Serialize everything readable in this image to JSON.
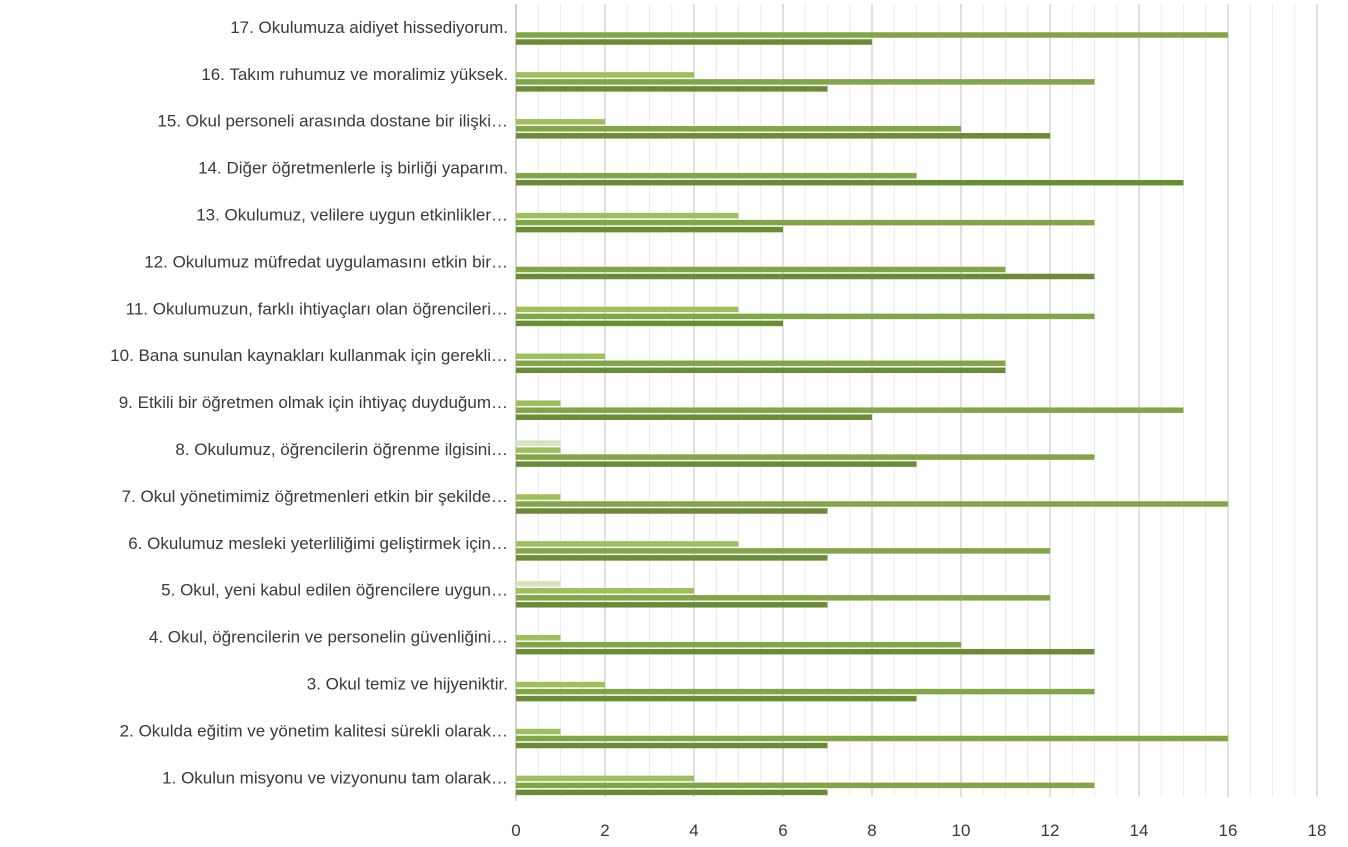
{
  "chart_data": {
    "type": "bar",
    "orientation": "horizontal",
    "xlim": [
      0,
      18
    ],
    "x_ticks": [
      0,
      2,
      4,
      6,
      8,
      10,
      12,
      14,
      16,
      18
    ],
    "grid": true,
    "legend": "none",
    "categories": [
      "1. Okulun misyonu ve vizyonunu tam olarak…",
      "2. Okulda eğitim ve yönetim kalitesi sürekli olarak…",
      "3. Okul temiz ve hijyeniktir.",
      "4. Okul, öğrencilerin ve personelin güvenliğini…",
      "5. Okul, yeni kabul edilen öğrencilere uygun…",
      "6. Okulumuz mesleki yeterliliğimi geliştirmek için…",
      "7. Okul yönetimimiz öğretmenleri etkin bir şekilde…",
      "8. Okulumuz, öğrencilerin öğrenme ilgisini…",
      "9. Etkili bir öğretmen olmak için ihtiyaç duyduğum…",
      "10. Bana sunulan kaynakları kullanmak için gerekli…",
      "11. Okulumuzun, farklı ihtiyaçları olan öğrencileri…",
      "12. Okulumuz müfredat uygulamasını etkin bir…",
      "13. Okulumuz, velilere uygun etkinlikler…",
      "14. Diğer öğretmenlerle iş birliği yaparım.",
      "15. Okul personeli arasında dostane bir ilişki…",
      "16. Takım ruhumuz ve moralimiz yüksek.",
      "17. Okulumuza aidiyet hissediyorum."
    ],
    "series": [
      {
        "color": "#d6e3bf",
        "values": [
          0,
          0,
          0,
          0,
          1,
          0,
          0,
          1,
          0,
          0,
          0,
          0,
          0,
          0,
          0,
          0,
          0
        ]
      },
      {
        "color": "#9dbf5d",
        "values": [
          4,
          1,
          2,
          1,
          4,
          5,
          1,
          1,
          1,
          2,
          5,
          0,
          5,
          0,
          2,
          4,
          0
        ]
      },
      {
        "color": "#82a547",
        "values": [
          13,
          16,
          13,
          10,
          12,
          12,
          16,
          13,
          15,
          11,
          13,
          11,
          13,
          9,
          10,
          13,
          16
        ]
      },
      {
        "color": "#6a8c36",
        "values": [
          7,
          7,
          9,
          13,
          7,
          7,
          7,
          9,
          8,
          11,
          6,
          13,
          6,
          15,
          12,
          7,
          8
        ]
      }
    ]
  }
}
